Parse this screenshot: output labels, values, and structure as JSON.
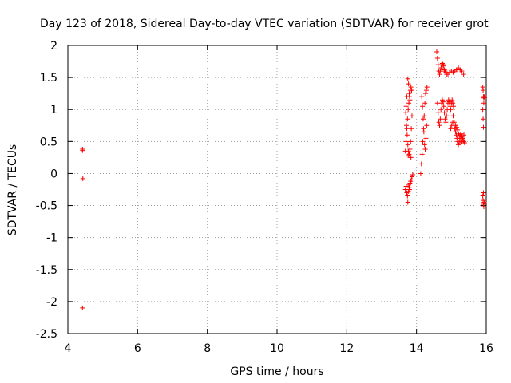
{
  "chart_data": {
    "type": "scatter",
    "title": "Day 123 of 2018, Sidereal Day-to-day VTEC variation (SDTVAR) for receiver grot",
    "xlabel": "GPS time / hours",
    "ylabel": "SDTVAR / TECUs",
    "xlim": [
      4,
      16
    ],
    "ylim": [
      -2.5,
      2
    ],
    "xticks": [
      4,
      6,
      8,
      10,
      12,
      14,
      16
    ],
    "xtick_labels": [
      "4",
      "6",
      "8",
      "10",
      "12",
      "14",
      "16"
    ],
    "yticks": [
      -2.5,
      -2,
      -1.5,
      -1,
      -0.5,
      0,
      0.5,
      1,
      1.5,
      2
    ],
    "ytick_labels": [
      "-2.5",
      "-2",
      "-1.5",
      "-1",
      "-0.5",
      "0",
      "0.5",
      "1",
      "1.5",
      "2"
    ],
    "grid": true,
    "marker": "+",
    "color": "#ff0000",
    "series": [
      {
        "name": "SDTVAR",
        "points": [
          [
            4.42,
            0.38
          ],
          [
            4.42,
            0.36
          ],
          [
            4.43,
            -0.08
          ],
          [
            4.42,
            -2.1
          ],
          [
            13.68,
            -0.25
          ],
          [
            13.7,
            -0.2
          ],
          [
            13.72,
            -0.3
          ],
          [
            13.74,
            -0.35
          ],
          [
            13.75,
            -0.45
          ],
          [
            13.77,
            -0.28
          ],
          [
            13.79,
            -0.22
          ],
          [
            13.81,
            -0.15
          ],
          [
            13.83,
            -0.12
          ],
          [
            13.85,
            -0.1
          ],
          [
            13.87,
            -0.05
          ],
          [
            13.89,
            -0.02
          ],
          [
            13.78,
            -0.18
          ],
          [
            13.8,
            -0.25
          ],
          [
            13.68,
            0.35
          ],
          [
            13.7,
            0.5
          ],
          [
            13.72,
            0.7
          ],
          [
            13.74,
            0.85
          ],
          [
            13.76,
            1.0
          ],
          [
            13.78,
            1.1
          ],
          [
            13.8,
            1.2
          ],
          [
            13.82,
            1.3
          ],
          [
            13.84,
            1.35
          ],
          [
            13.86,
            1.3
          ],
          [
            13.75,
            1.48
          ],
          [
            13.77,
            1.4
          ],
          [
            13.79,
            1.25
          ],
          [
            13.81,
            1.15
          ],
          [
            13.69,
            0.95
          ],
          [
            13.71,
            0.75
          ],
          [
            13.73,
            0.6
          ],
          [
            13.75,
            0.45
          ],
          [
            13.77,
            0.35
          ],
          [
            13.79,
            0.3
          ],
          [
            13.81,
            0.38
          ],
          [
            13.83,
            0.5
          ],
          [
            13.85,
            0.7
          ],
          [
            13.87,
            0.9
          ],
          [
            13.7,
            1.05
          ],
          [
            13.72,
            1.2
          ],
          [
            13.76,
            0.28
          ],
          [
            13.84,
            0.25
          ],
          [
            14.12,
            0.0
          ],
          [
            14.14,
            0.15
          ],
          [
            14.16,
            0.3
          ],
          [
            14.18,
            0.5
          ],
          [
            14.2,
            0.7
          ],
          [
            14.22,
            0.9
          ],
          [
            14.24,
            1.1
          ],
          [
            14.26,
            1.25
          ],
          [
            14.28,
            1.3
          ],
          [
            14.3,
            1.35
          ],
          [
            14.15,
            1.2
          ],
          [
            14.17,
            1.05
          ],
          [
            14.19,
            0.85
          ],
          [
            14.21,
            0.65
          ],
          [
            14.23,
            0.45
          ],
          [
            14.25,
            0.38
          ],
          [
            14.27,
            0.55
          ],
          [
            14.29,
            0.75
          ],
          [
            14.58,
            1.9
          ],
          [
            14.6,
            1.8
          ],
          [
            14.62,
            1.7
          ],
          [
            14.64,
            1.6
          ],
          [
            14.66,
            1.55
          ],
          [
            14.68,
            1.6
          ],
          [
            14.7,
            1.65
          ],
          [
            14.72,
            1.7
          ],
          [
            14.74,
            1.72
          ],
          [
            14.76,
            1.7
          ],
          [
            14.78,
            1.68
          ],
          [
            14.8,
            1.62
          ],
          [
            14.82,
            1.6
          ],
          [
            14.84,
            1.58
          ],
          [
            14.86,
            1.55
          ],
          [
            14.9,
            1.55
          ],
          [
            14.95,
            1.58
          ],
          [
            15.0,
            1.6
          ],
          [
            15.05,
            1.58
          ],
          [
            15.1,
            1.6
          ],
          [
            15.15,
            1.62
          ],
          [
            15.2,
            1.65
          ],
          [
            15.25,
            1.62
          ],
          [
            15.3,
            1.6
          ],
          [
            15.35,
            1.55
          ],
          [
            14.6,
            1.1
          ],
          [
            14.62,
            0.95
          ],
          [
            14.64,
            0.8
          ],
          [
            14.66,
            0.75
          ],
          [
            14.68,
            0.85
          ],
          [
            14.7,
            1.0
          ],
          [
            14.72,
            1.1
          ],
          [
            14.74,
            1.15
          ],
          [
            14.76,
            1.12
          ],
          [
            14.78,
            1.05
          ],
          [
            14.8,
            0.95
          ],
          [
            14.82,
            0.85
          ],
          [
            14.84,
            0.8
          ],
          [
            14.86,
            0.9
          ],
          [
            14.88,
            1.0
          ],
          [
            14.9,
            1.1
          ],
          [
            14.92,
            1.15
          ],
          [
            14.94,
            1.12
          ],
          [
            14.96,
            1.05
          ],
          [
            14.98,
            1.0
          ],
          [
            15.0,
            1.1
          ],
          [
            15.02,
            1.15
          ],
          [
            15.04,
            1.1
          ],
          [
            15.06,
            1.05
          ],
          [
            15.05,
            0.9
          ],
          [
            15.08,
            0.8
          ],
          [
            15.1,
            0.7
          ],
          [
            15.12,
            0.65
          ],
          [
            15.14,
            0.6
          ],
          [
            15.16,
            0.55
          ],
          [
            15.18,
            0.5
          ],
          [
            15.2,
            0.45
          ],
          [
            15.22,
            0.48
          ],
          [
            15.24,
            0.55
          ],
          [
            15.26,
            0.6
          ],
          [
            15.28,
            0.62
          ],
          [
            15.3,
            0.58
          ],
          [
            15.32,
            0.55
          ],
          [
            15.34,
            0.52
          ],
          [
            15.36,
            0.5
          ],
          [
            15.38,
            0.48
          ],
          [
            15.12,
            0.75
          ],
          [
            15.15,
            0.72
          ],
          [
            15.18,
            0.68
          ],
          [
            15.21,
            0.62
          ],
          [
            15.24,
            0.58
          ],
          [
            15.27,
            0.52
          ],
          [
            15.3,
            0.5
          ],
          [
            15.33,
            0.55
          ],
          [
            15.36,
            0.6
          ],
          [
            14.98,
            0.7
          ],
          [
            15.01,
            0.75
          ],
          [
            15.04,
            0.8
          ],
          [
            15.9,
            1.35
          ],
          [
            15.91,
            1.3
          ],
          [
            15.92,
            1.2
          ],
          [
            15.93,
            1.1
          ],
          [
            15.9,
            1.0
          ],
          [
            15.91,
            0.85
          ],
          [
            15.92,
            0.72
          ],
          [
            15.93,
            1.18
          ],
          [
            15.94,
            1.2
          ],
          [
            15.96,
            1.19
          ],
          [
            15.9,
            -0.35
          ],
          [
            15.91,
            -0.42
          ],
          [
            15.92,
            -0.48
          ],
          [
            15.93,
            -0.52
          ],
          [
            15.92,
            -0.3
          ],
          [
            15.94,
            -0.45
          ]
        ]
      }
    ]
  }
}
